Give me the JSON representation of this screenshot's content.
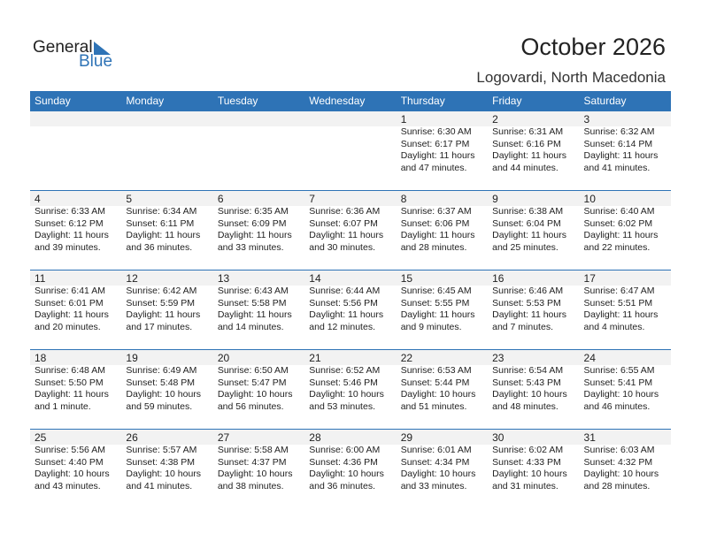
{
  "logo": {
    "line1": "General",
    "line2": "Blue"
  },
  "title": "October 2026",
  "location": "Logovardi, North Macedonia",
  "colors": {
    "accent": "#2e73b6",
    "band": "#f2f2f2"
  },
  "weekdays": [
    "Sunday",
    "Monday",
    "Tuesday",
    "Wednesday",
    "Thursday",
    "Friday",
    "Saturday"
  ],
  "weeks": [
    [
      null,
      null,
      null,
      null,
      {
        "day": "1",
        "sunrise": "Sunrise: 6:30 AM",
        "sunset": "Sunset: 6:17 PM",
        "daylight": "Daylight: 11 hours",
        "minutes": "and 47 minutes."
      },
      {
        "day": "2",
        "sunrise": "Sunrise: 6:31 AM",
        "sunset": "Sunset: 6:16 PM",
        "daylight": "Daylight: 11 hours",
        "minutes": "and 44 minutes."
      },
      {
        "day": "3",
        "sunrise": "Sunrise: 6:32 AM",
        "sunset": "Sunset: 6:14 PM",
        "daylight": "Daylight: 11 hours",
        "minutes": "and 41 minutes."
      }
    ],
    [
      {
        "day": "4",
        "sunrise": "Sunrise: 6:33 AM",
        "sunset": "Sunset: 6:12 PM",
        "daylight": "Daylight: 11 hours",
        "minutes": "and 39 minutes."
      },
      {
        "day": "5",
        "sunrise": "Sunrise: 6:34 AM",
        "sunset": "Sunset: 6:11 PM",
        "daylight": "Daylight: 11 hours",
        "minutes": "and 36 minutes."
      },
      {
        "day": "6",
        "sunrise": "Sunrise: 6:35 AM",
        "sunset": "Sunset: 6:09 PM",
        "daylight": "Daylight: 11 hours",
        "minutes": "and 33 minutes."
      },
      {
        "day": "7",
        "sunrise": "Sunrise: 6:36 AM",
        "sunset": "Sunset: 6:07 PM",
        "daylight": "Daylight: 11 hours",
        "minutes": "and 30 minutes."
      },
      {
        "day": "8",
        "sunrise": "Sunrise: 6:37 AM",
        "sunset": "Sunset: 6:06 PM",
        "daylight": "Daylight: 11 hours",
        "minutes": "and 28 minutes."
      },
      {
        "day": "9",
        "sunrise": "Sunrise: 6:38 AM",
        "sunset": "Sunset: 6:04 PM",
        "daylight": "Daylight: 11 hours",
        "minutes": "and 25 minutes."
      },
      {
        "day": "10",
        "sunrise": "Sunrise: 6:40 AM",
        "sunset": "Sunset: 6:02 PM",
        "daylight": "Daylight: 11 hours",
        "minutes": "and 22 minutes."
      }
    ],
    [
      {
        "day": "11",
        "sunrise": "Sunrise: 6:41 AM",
        "sunset": "Sunset: 6:01 PM",
        "daylight": "Daylight: 11 hours",
        "minutes": "and 20 minutes."
      },
      {
        "day": "12",
        "sunrise": "Sunrise: 6:42 AM",
        "sunset": "Sunset: 5:59 PM",
        "daylight": "Daylight: 11 hours",
        "minutes": "and 17 minutes."
      },
      {
        "day": "13",
        "sunrise": "Sunrise: 6:43 AM",
        "sunset": "Sunset: 5:58 PM",
        "daylight": "Daylight: 11 hours",
        "minutes": "and 14 minutes."
      },
      {
        "day": "14",
        "sunrise": "Sunrise: 6:44 AM",
        "sunset": "Sunset: 5:56 PM",
        "daylight": "Daylight: 11 hours",
        "minutes": "and 12 minutes."
      },
      {
        "day": "15",
        "sunrise": "Sunrise: 6:45 AM",
        "sunset": "Sunset: 5:55 PM",
        "daylight": "Daylight: 11 hours",
        "minutes": "and 9 minutes."
      },
      {
        "day": "16",
        "sunrise": "Sunrise: 6:46 AM",
        "sunset": "Sunset: 5:53 PM",
        "daylight": "Daylight: 11 hours",
        "minutes": "and 7 minutes."
      },
      {
        "day": "17",
        "sunrise": "Sunrise: 6:47 AM",
        "sunset": "Sunset: 5:51 PM",
        "daylight": "Daylight: 11 hours",
        "minutes": "and 4 minutes."
      }
    ],
    [
      {
        "day": "18",
        "sunrise": "Sunrise: 6:48 AM",
        "sunset": "Sunset: 5:50 PM",
        "daylight": "Daylight: 11 hours",
        "minutes": "and 1 minute."
      },
      {
        "day": "19",
        "sunrise": "Sunrise: 6:49 AM",
        "sunset": "Sunset: 5:48 PM",
        "daylight": "Daylight: 10 hours",
        "minutes": "and 59 minutes."
      },
      {
        "day": "20",
        "sunrise": "Sunrise: 6:50 AM",
        "sunset": "Sunset: 5:47 PM",
        "daylight": "Daylight: 10 hours",
        "minutes": "and 56 minutes."
      },
      {
        "day": "21",
        "sunrise": "Sunrise: 6:52 AM",
        "sunset": "Sunset: 5:46 PM",
        "daylight": "Daylight: 10 hours",
        "minutes": "and 53 minutes."
      },
      {
        "day": "22",
        "sunrise": "Sunrise: 6:53 AM",
        "sunset": "Sunset: 5:44 PM",
        "daylight": "Daylight: 10 hours",
        "minutes": "and 51 minutes."
      },
      {
        "day": "23",
        "sunrise": "Sunrise: 6:54 AM",
        "sunset": "Sunset: 5:43 PM",
        "daylight": "Daylight: 10 hours",
        "minutes": "and 48 minutes."
      },
      {
        "day": "24",
        "sunrise": "Sunrise: 6:55 AM",
        "sunset": "Sunset: 5:41 PM",
        "daylight": "Daylight: 10 hours",
        "minutes": "and 46 minutes."
      }
    ],
    [
      {
        "day": "25",
        "sunrise": "Sunrise: 5:56 AM",
        "sunset": "Sunset: 4:40 PM",
        "daylight": "Daylight: 10 hours",
        "minutes": "and 43 minutes."
      },
      {
        "day": "26",
        "sunrise": "Sunrise: 5:57 AM",
        "sunset": "Sunset: 4:38 PM",
        "daylight": "Daylight: 10 hours",
        "minutes": "and 41 minutes."
      },
      {
        "day": "27",
        "sunrise": "Sunrise: 5:58 AM",
        "sunset": "Sunset: 4:37 PM",
        "daylight": "Daylight: 10 hours",
        "minutes": "and 38 minutes."
      },
      {
        "day": "28",
        "sunrise": "Sunrise: 6:00 AM",
        "sunset": "Sunset: 4:36 PM",
        "daylight": "Daylight: 10 hours",
        "minutes": "and 36 minutes."
      },
      {
        "day": "29",
        "sunrise": "Sunrise: 6:01 AM",
        "sunset": "Sunset: 4:34 PM",
        "daylight": "Daylight: 10 hours",
        "minutes": "and 33 minutes."
      },
      {
        "day": "30",
        "sunrise": "Sunrise: 6:02 AM",
        "sunset": "Sunset: 4:33 PM",
        "daylight": "Daylight: 10 hours",
        "minutes": "and 31 minutes."
      },
      {
        "day": "31",
        "sunrise": "Sunrise: 6:03 AM",
        "sunset": "Sunset: 4:32 PM",
        "daylight": "Daylight: 10 hours",
        "minutes": "and 28 minutes."
      }
    ]
  ]
}
